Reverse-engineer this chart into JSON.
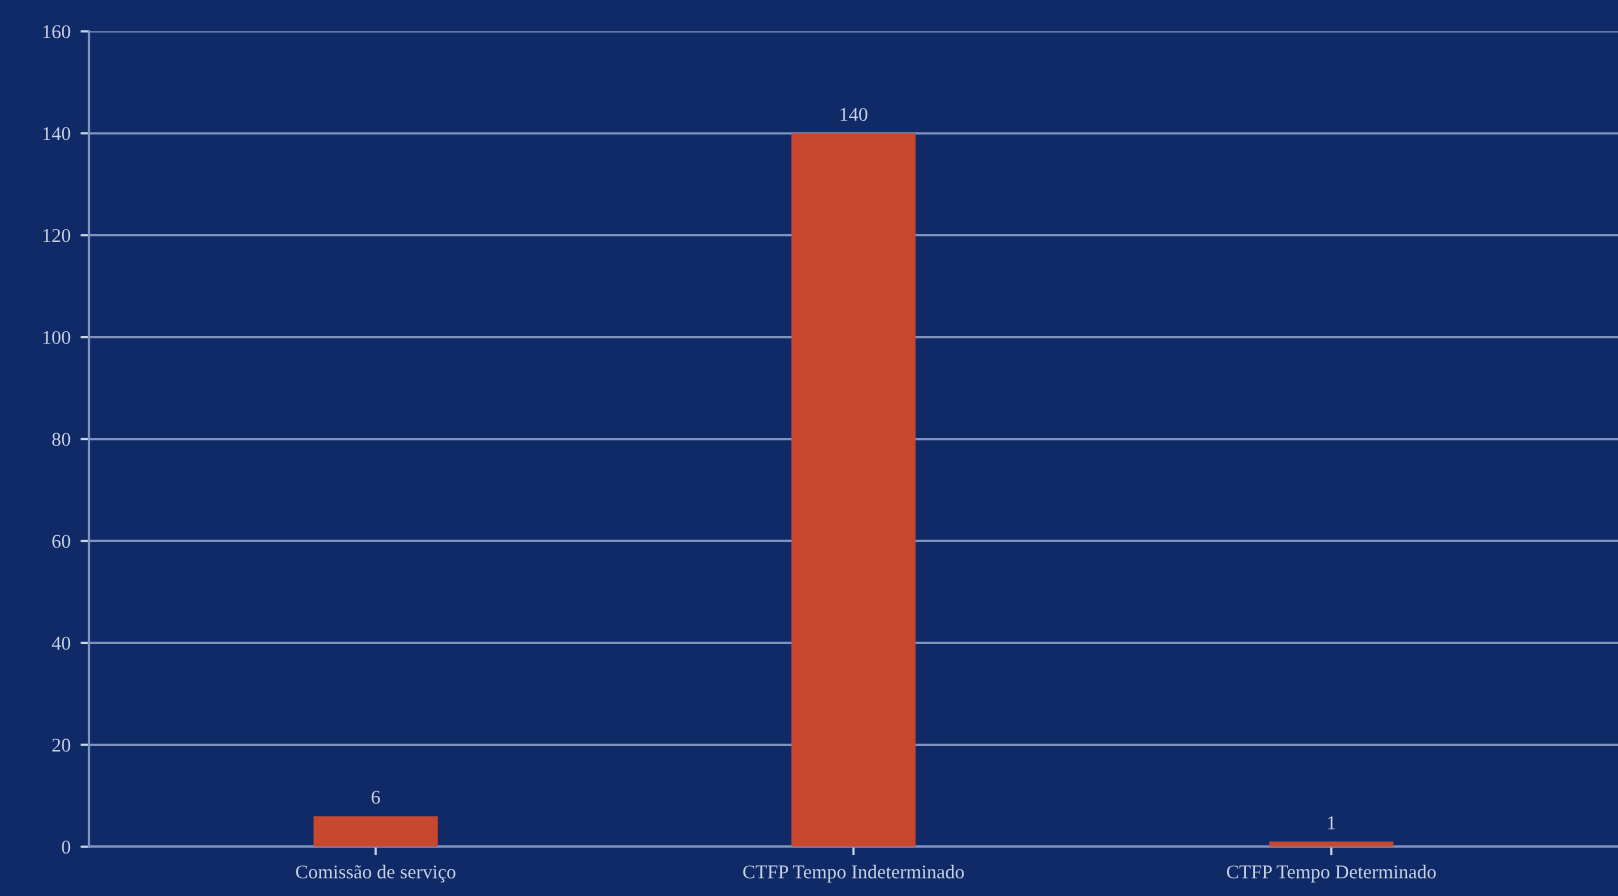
{
  "chart_data": {
    "type": "bar",
    "categories": [
      "Comissão de serviço",
      "CTFP Tempo Indeterminado",
      "CTFP Tempo Determinado"
    ],
    "values": [
      6,
      140,
      1
    ],
    "color": "#c8472f",
    "ylim": [
      0,
      160
    ],
    "yticks": [
      0,
      20,
      40,
      60,
      80,
      100,
      120,
      140,
      160
    ],
    "grid": "y",
    "data_labels": true
  }
}
